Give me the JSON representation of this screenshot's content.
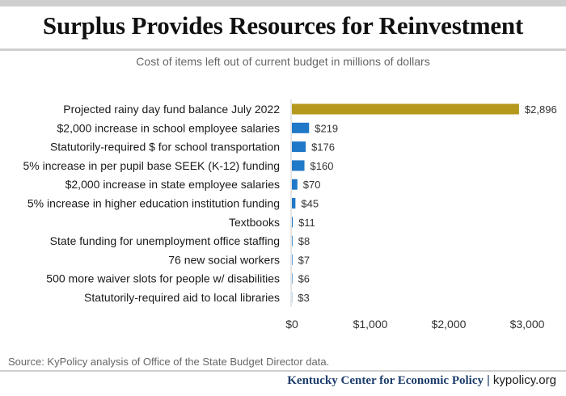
{
  "title": "Surplus Provides Resources for Reinvestment",
  "subtitle": "Cost of items left out of current budget in millions of dollars",
  "source": "Source: KyPolicy analysis of Office of the State Budget Director data.",
  "footer": {
    "org": "Kentucky Center for Economic Policy",
    "separator": "|",
    "site": "kypolicy.org"
  },
  "colors": {
    "highlight": "#b5981c",
    "bar": "#1f78c8",
    "axis": "#cccccc"
  },
  "chart_data": {
    "type": "bar",
    "orientation": "horizontal",
    "title": "Surplus Provides Resources for Reinvestment",
    "subtitle": "Cost of items left out of current budget in millions of dollars",
    "categories": [
      "Projected rainy day fund balance July 2022",
      "$2,000 increase in school employee salaries",
      "Statutorily-required $ for school transportation",
      "5% increase in per pupil base SEEK (K-12) funding",
      "$2,000 increase in state employee salaries",
      "5% increase in higher education institution funding",
      "Textbooks",
      "State funding for unemployment office staffing",
      "76 new social workers",
      "500 more waiver slots for people w/ disabilities",
      "Statutorily-required aid to local libraries"
    ],
    "values": [
      2896,
      219,
      176,
      160,
      70,
      45,
      11,
      8,
      7,
      6,
      3
    ],
    "value_labels": [
      "$2,896",
      "$219",
      "$176",
      "$160",
      "$70",
      "$45",
      "$11",
      "$8",
      "$7",
      "$6",
      "$3"
    ],
    "highlight_index": 0,
    "xlim": [
      0,
      3000
    ],
    "xticks": [
      0,
      1000,
      2000,
      3000
    ],
    "xtick_labels": [
      "$0",
      "$1,000",
      "$2,000",
      "$3,000"
    ],
    "grid": false,
    "legend": "none"
  }
}
